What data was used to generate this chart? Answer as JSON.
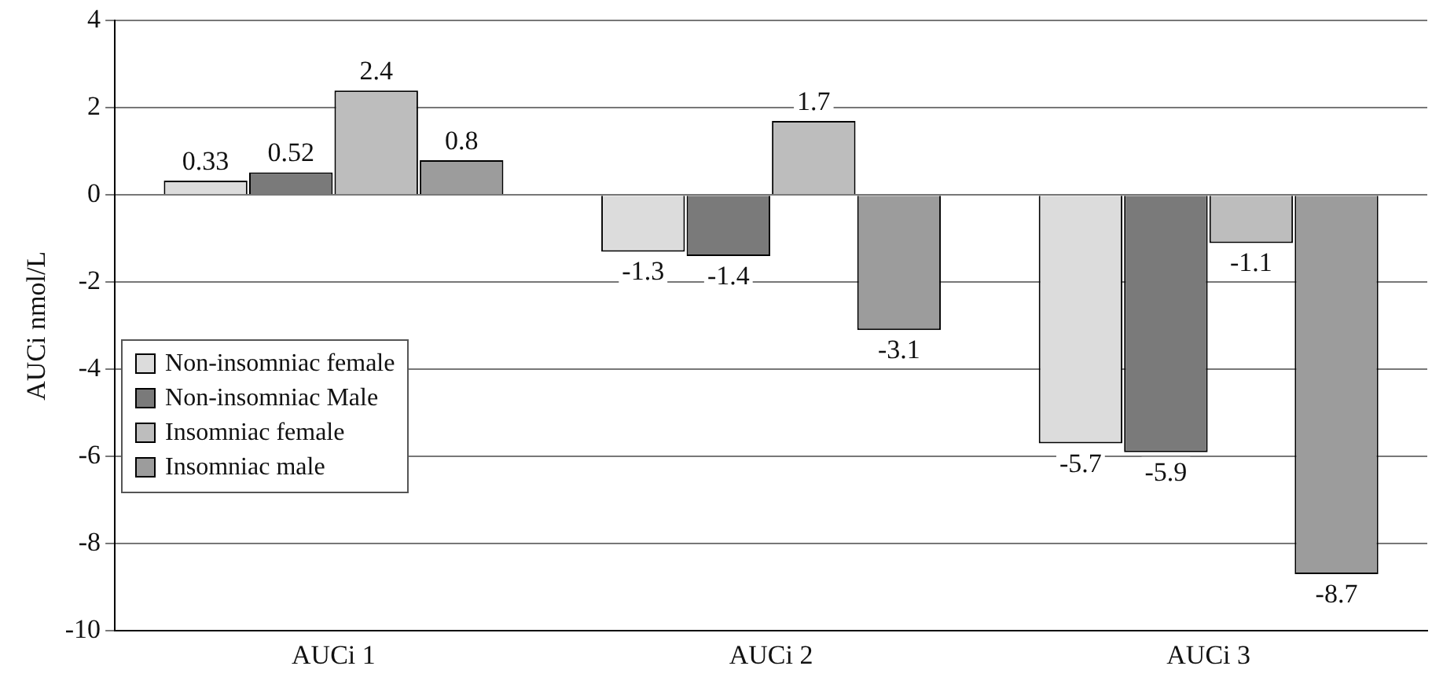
{
  "chart_data": {
    "type": "bar",
    "ylabel": "AUCi nmol/L",
    "categories": [
      "AUCi 1",
      "AUCi 2",
      "AUCi 3"
    ],
    "series": [
      {
        "name": "Non-insomniac female",
        "color": "#dcdcdc",
        "values": [
          0.33,
          -1.3,
          -5.7
        ]
      },
      {
        "name": "Non-insomniac Male",
        "color": "#7a7a7a",
        "values": [
          0.52,
          -1.4,
          -5.9
        ]
      },
      {
        "name": "Insomniac female",
        "color": "#bdbdbd",
        "values": [
          2.4,
          1.7,
          -1.1
        ]
      },
      {
        "name": "Insomniac male",
        "color": "#9c9c9c",
        "values": [
          0.8,
          -3.1,
          -8.7
        ]
      }
    ],
    "ylim": [
      -10,
      4
    ],
    "yticks": [
      -10,
      -8,
      -6,
      -4,
      -2,
      0,
      2,
      4
    ],
    "grid": "y",
    "legend": "left",
    "data_labels": true
  }
}
